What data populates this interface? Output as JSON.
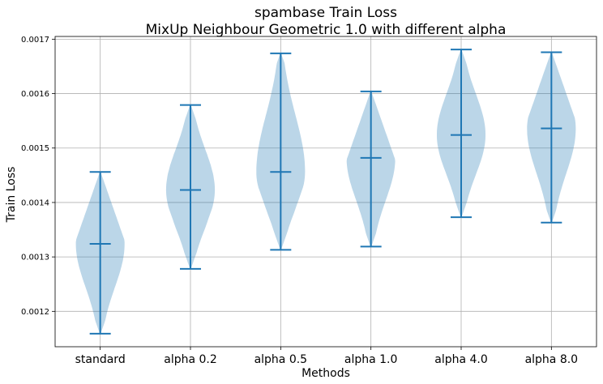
{
  "chart_data": {
    "type": "violin",
    "title": "spambase Train Loss",
    "subtitle": "MixUp Neighbour Geometric 1.0 with different alpha",
    "xlabel": "Methods",
    "ylabel": "Train Loss",
    "categories": [
      "standard",
      "alpha 0.2",
      "alpha 0.5",
      "alpha 1.0",
      "alpha 4.0",
      "alpha 8.0"
    ],
    "ylim": [
      0.001135,
      0.001705
    ],
    "yticks": [
      0.0012,
      0.0013,
      0.0014,
      0.0015,
      0.0016,
      0.0017
    ],
    "ytick_labels": [
      "0.0012",
      "0.0013",
      "0.0014",
      "0.0015",
      "0.0016",
      "0.0017"
    ],
    "grid": true,
    "color": "#1f77b4",
    "series": [
      {
        "min": 0.001159,
        "max": 0.001456,
        "mean": 0.001324
      },
      {
        "min": 0.001278,
        "max": 0.001579,
        "mean": 0.001423
      },
      {
        "min": 0.001313,
        "max": 0.001674,
        "mean": 0.001456
      },
      {
        "min": 0.001319,
        "max": 0.001604,
        "mean": 0.001482
      },
      {
        "min": 0.001373,
        "max": 0.001681,
        "mean": 0.001524
      },
      {
        "min": 0.001363,
        "max": 0.001676,
        "mean": 0.001536
      }
    ]
  }
}
